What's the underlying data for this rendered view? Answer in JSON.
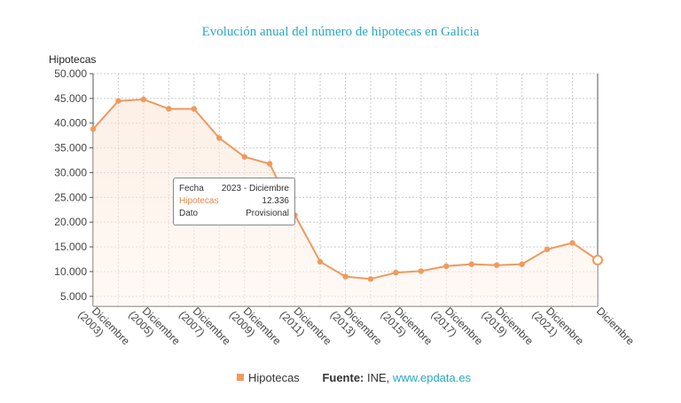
{
  "colors": {
    "series": "#ef9a5e",
    "title": "#2aa7c4",
    "grid": "#cccccc"
  },
  "chart_data": {
    "type": "area",
    "title": "Evolución anual del número de hipotecas en Galicia",
    "ylabel": "Hipotecas",
    "ylim": [
      3000,
      50000
    ],
    "yticks": [
      "50.000",
      "45.000",
      "40.000",
      "35.000",
      "30.000",
      "25.000",
      "20.000",
      "15.000",
      "10.000",
      "5.000"
    ],
    "x_labels": [
      "Diciembre (2003)",
      "Diciembre (2005)",
      "Diciembre (2007)",
      "Diciembre (2009)",
      "Diciembre (2011)",
      "Diciembre (2013)",
      "Diciembre (2015)",
      "Diciembre (2017)",
      "Diciembre (2019)",
      "Diciembre (2021)",
      "Diciembre"
    ],
    "series": [
      {
        "name": "Hipotecas",
        "x": [
          "2003",
          "2004",
          "2005",
          "2006",
          "2007",
          "2008",
          "2009",
          "2010",
          "2011",
          "2012",
          "2013",
          "2014",
          "2015",
          "2016",
          "2017",
          "2018",
          "2019",
          "2020",
          "2021",
          "2022",
          "2023"
        ],
        "values": [
          38800,
          44500,
          44800,
          42900,
          42900,
          37000,
          33200,
          31800,
          21400,
          12000,
          9000,
          8500,
          9800,
          10100,
          11100,
          11500,
          11300,
          11500,
          14500,
          15800,
          12336
        ]
      }
    ],
    "grid": true
  },
  "tooltip": {
    "rows": [
      {
        "label": "Fecha",
        "value": "2023 - Diciembre"
      },
      {
        "label": "Hipotecas",
        "value": "12.336"
      },
      {
        "label": "Dato",
        "value": "Provisional"
      }
    ]
  },
  "legend": {
    "series_label": "Hipotecas",
    "source_label": "Fuente:",
    "source_text": "INE,",
    "source_link": "www.epdata.es"
  }
}
